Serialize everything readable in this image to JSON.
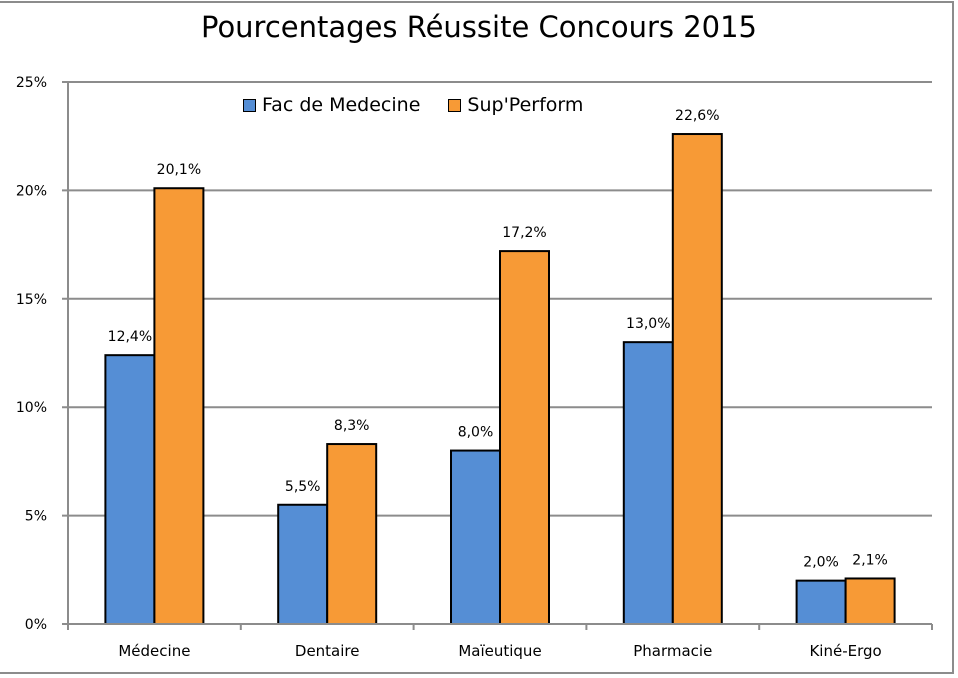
{
  "chart_data": {
    "type": "bar",
    "title": "Pourcentages Réussite Concours 2015",
    "categories": [
      "Médecine",
      "Dentaire",
      "Maïeutique",
      "Pharmacie",
      "Kiné-Ergo"
    ],
    "series": [
      {
        "name": "Fac de Medecine",
        "color": "#558ed5",
        "values": [
          12.4,
          5.5,
          8.0,
          13.0,
          2.0
        ],
        "labels": [
          "12,4%",
          "5,5%",
          "8,0%",
          "13,0%",
          "2,0%"
        ]
      },
      {
        "name": "Sup'Perform",
        "color": "#f79a36",
        "values": [
          20.1,
          8.3,
          17.2,
          22.6,
          2.1
        ],
        "labels": [
          "20,1%",
          "8,3%",
          "17,2%",
          "22,6%",
          "2,1%"
        ]
      }
    ],
    "xlabel": "",
    "ylabel": "",
    "ylim": [
      0,
      25
    ],
    "yticks": [
      "0%",
      "5%",
      "10%",
      "15%",
      "20%",
      "25%"
    ],
    "grid": true,
    "legend_position": "top-inside"
  }
}
